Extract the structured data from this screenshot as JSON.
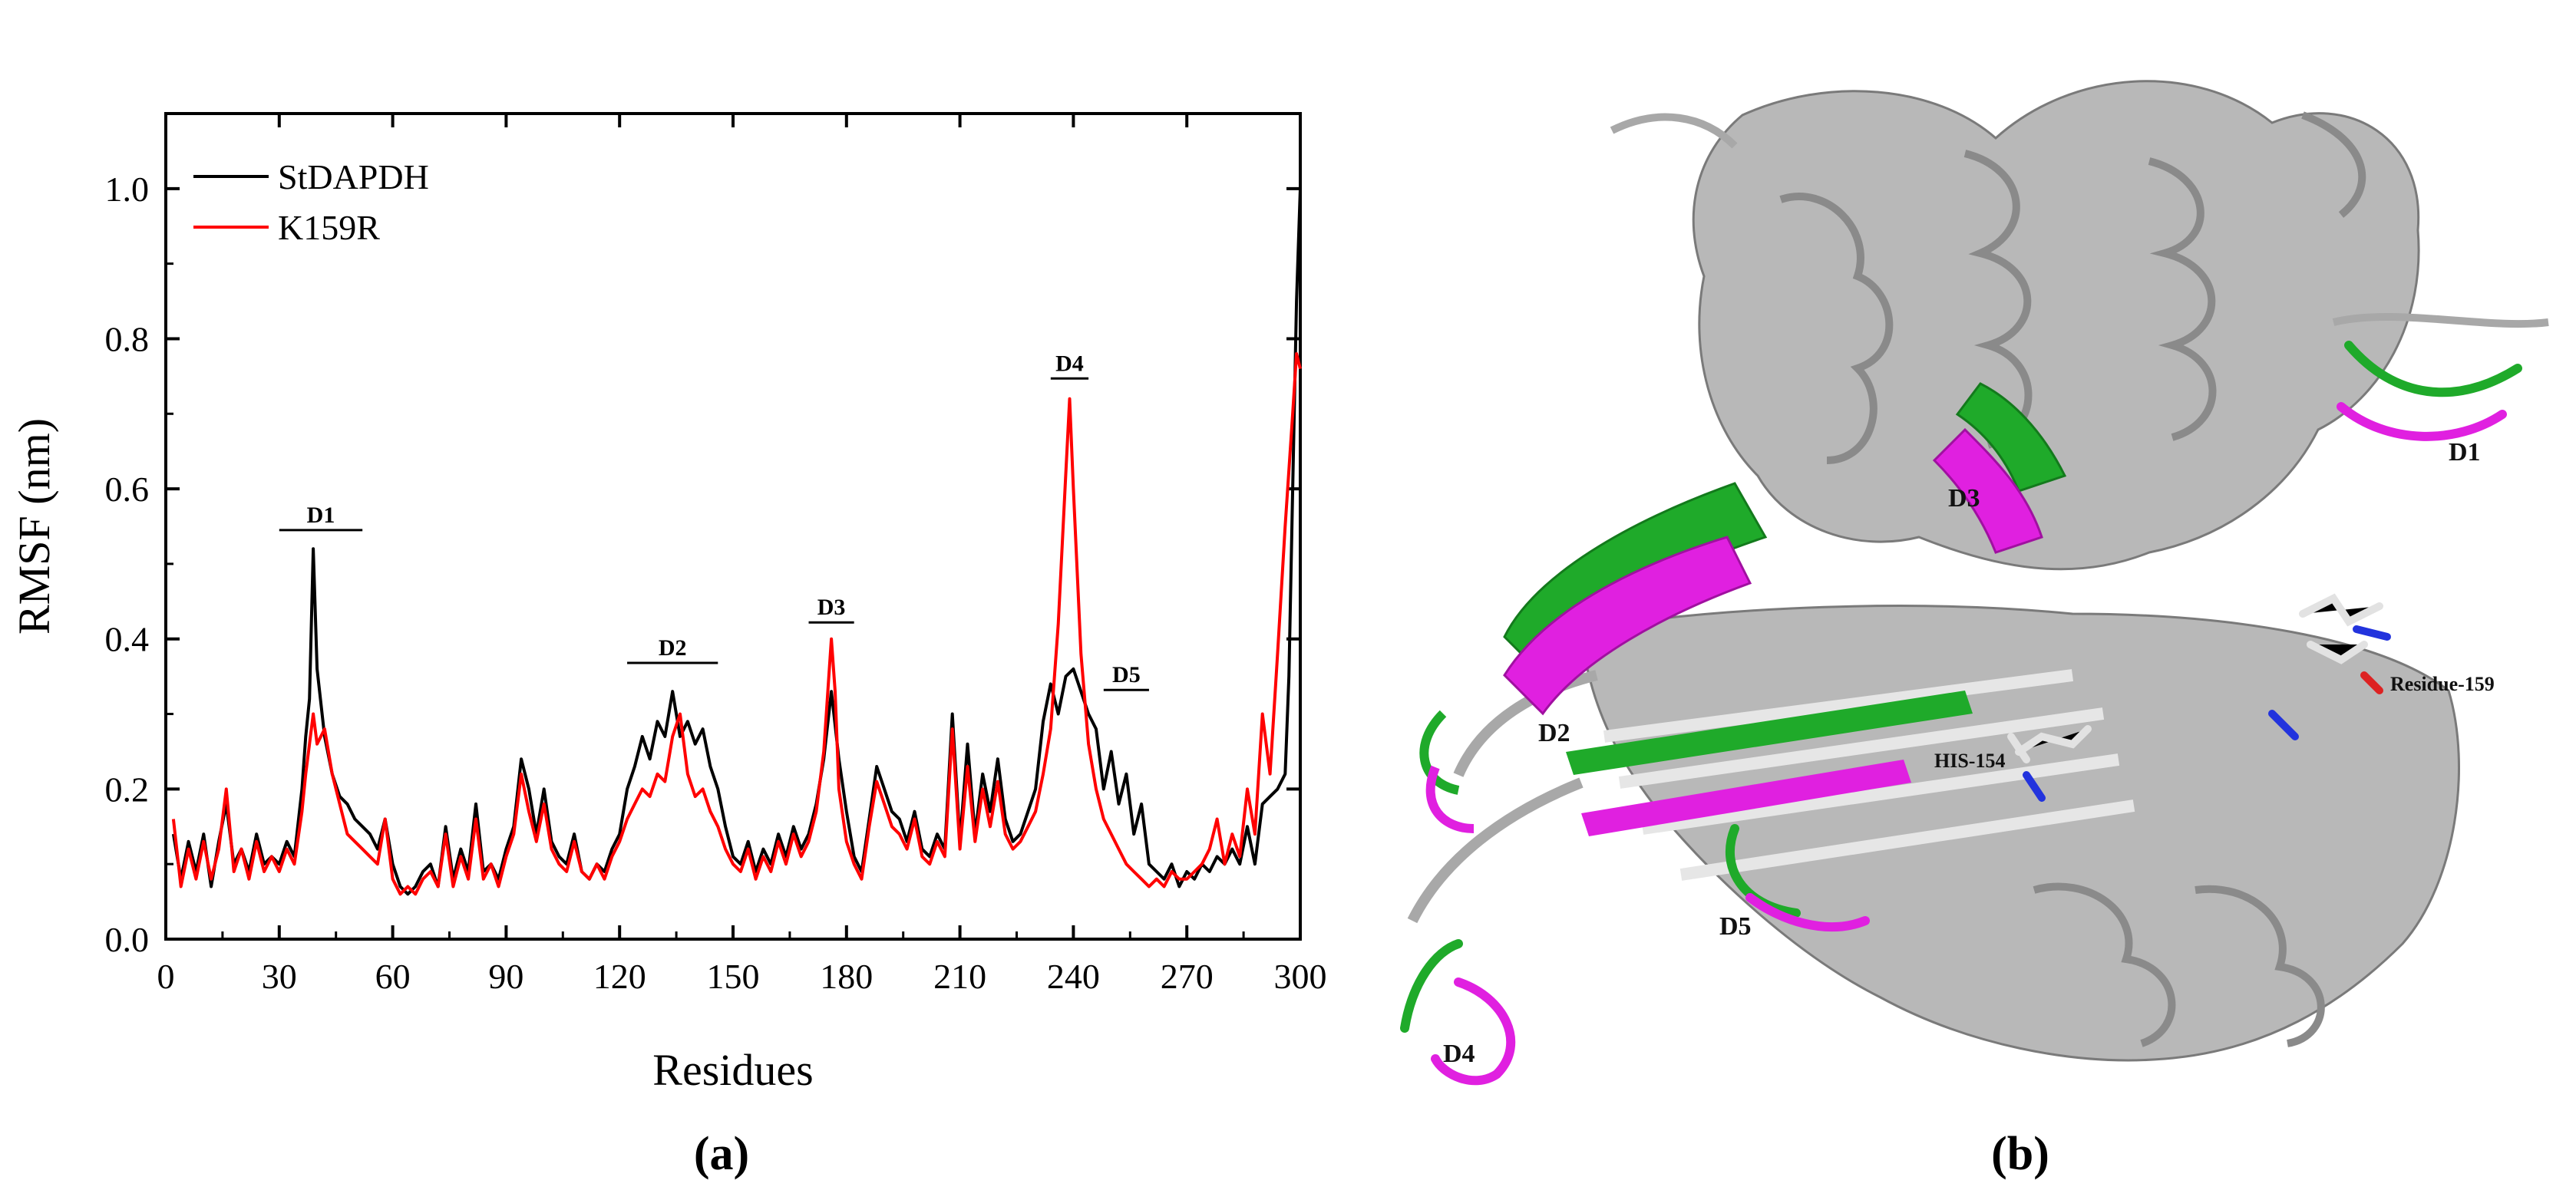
{
  "chart_data": {
    "type": "line",
    "xlabel": "Residues",
    "ylabel": "RMSF (nm)",
    "xlim": [
      0,
      300
    ],
    "ylim": [
      0.0,
      1.1
    ],
    "x_ticks": [
      "0",
      "30",
      "60",
      "90",
      "120",
      "150",
      "180",
      "210",
      "240",
      "270",
      "300"
    ],
    "y_ticks": [
      "0.0",
      "0.2",
      "0.4",
      "0.6",
      "0.8",
      "1.0"
    ],
    "legend_position": "top-left",
    "series": [
      {
        "name": "StDAPDH",
        "color": "#000000",
        "points": [
          [
            2,
            0.14
          ],
          [
            4,
            0.08
          ],
          [
            6,
            0.13
          ],
          [
            8,
            0.09
          ],
          [
            10,
            0.14
          ],
          [
            12,
            0.07
          ],
          [
            14,
            0.13
          ],
          [
            16,
            0.18
          ],
          [
            18,
            0.1
          ],
          [
            20,
            0.12
          ],
          [
            22,
            0.09
          ],
          [
            24,
            0.14
          ],
          [
            26,
            0.1
          ],
          [
            28,
            0.11
          ],
          [
            30,
            0.1
          ],
          [
            32,
            0.13
          ],
          [
            34,
            0.11
          ],
          [
            36,
            0.2
          ],
          [
            37,
            0.27
          ],
          [
            38,
            0.32
          ],
          [
            39,
            0.52
          ],
          [
            40,
            0.36
          ],
          [
            42,
            0.27
          ],
          [
            44,
            0.22
          ],
          [
            46,
            0.19
          ],
          [
            48,
            0.18
          ],
          [
            50,
            0.16
          ],
          [
            52,
            0.15
          ],
          [
            54,
            0.14
          ],
          [
            56,
            0.12
          ],
          [
            58,
            0.16
          ],
          [
            60,
            0.1
          ],
          [
            62,
            0.07
          ],
          [
            64,
            0.06
          ],
          [
            66,
            0.07
          ],
          [
            68,
            0.09
          ],
          [
            70,
            0.1
          ],
          [
            72,
            0.07
          ],
          [
            74,
            0.15
          ],
          [
            76,
            0.08
          ],
          [
            78,
            0.12
          ],
          [
            80,
            0.09
          ],
          [
            82,
            0.18
          ],
          [
            84,
            0.09
          ],
          [
            86,
            0.1
          ],
          [
            88,
            0.08
          ],
          [
            90,
            0.12
          ],
          [
            92,
            0.15
          ],
          [
            94,
            0.24
          ],
          [
            96,
            0.2
          ],
          [
            98,
            0.14
          ],
          [
            100,
            0.2
          ],
          [
            102,
            0.13
          ],
          [
            104,
            0.11
          ],
          [
            106,
            0.1
          ],
          [
            108,
            0.14
          ],
          [
            110,
            0.09
          ],
          [
            112,
            0.08
          ],
          [
            114,
            0.1
          ],
          [
            116,
            0.09
          ],
          [
            118,
            0.12
          ],
          [
            120,
            0.14
          ],
          [
            122,
            0.2
          ],
          [
            124,
            0.23
          ],
          [
            126,
            0.27
          ],
          [
            128,
            0.24
          ],
          [
            130,
            0.29
          ],
          [
            132,
            0.27
          ],
          [
            134,
            0.33
          ],
          [
            136,
            0.27
          ],
          [
            138,
            0.29
          ],
          [
            140,
            0.26
          ],
          [
            142,
            0.28
          ],
          [
            144,
            0.23
          ],
          [
            146,
            0.2
          ],
          [
            148,
            0.15
          ],
          [
            150,
            0.11
          ],
          [
            152,
            0.1
          ],
          [
            154,
            0.13
          ],
          [
            156,
            0.09
          ],
          [
            158,
            0.12
          ],
          [
            160,
            0.1
          ],
          [
            162,
            0.14
          ],
          [
            164,
            0.11
          ],
          [
            166,
            0.15
          ],
          [
            168,
            0.12
          ],
          [
            170,
            0.14
          ],
          [
            172,
            0.18
          ],
          [
            174,
            0.24
          ],
          [
            176,
            0.33
          ],
          [
            178,
            0.24
          ],
          [
            180,
            0.17
          ],
          [
            182,
            0.11
          ],
          [
            184,
            0.09
          ],
          [
            186,
            0.16
          ],
          [
            188,
            0.23
          ],
          [
            190,
            0.2
          ],
          [
            192,
            0.17
          ],
          [
            194,
            0.16
          ],
          [
            196,
            0.13
          ],
          [
            198,
            0.17
          ],
          [
            200,
            0.12
          ],
          [
            202,
            0.11
          ],
          [
            204,
            0.14
          ],
          [
            206,
            0.12
          ],
          [
            208,
            0.3
          ],
          [
            210,
            0.13
          ],
          [
            212,
            0.26
          ],
          [
            214,
            0.14
          ],
          [
            216,
            0.22
          ],
          [
            218,
            0.17
          ],
          [
            220,
            0.24
          ],
          [
            222,
            0.16
          ],
          [
            224,
            0.13
          ],
          [
            226,
            0.14
          ],
          [
            228,
            0.17
          ],
          [
            230,
            0.2
          ],
          [
            232,
            0.29
          ],
          [
            234,
            0.34
          ],
          [
            236,
            0.3
          ],
          [
            238,
            0.35
          ],
          [
            240,
            0.36
          ],
          [
            242,
            0.33
          ],
          [
            244,
            0.3
          ],
          [
            246,
            0.28
          ],
          [
            248,
            0.2
          ],
          [
            250,
            0.25
          ],
          [
            252,
            0.18
          ],
          [
            254,
            0.22
          ],
          [
            256,
            0.14
          ],
          [
            258,
            0.18
          ],
          [
            260,
            0.1
          ],
          [
            262,
            0.09
          ],
          [
            264,
            0.08
          ],
          [
            266,
            0.1
          ],
          [
            268,
            0.07
          ],
          [
            270,
            0.09
          ],
          [
            272,
            0.08
          ],
          [
            274,
            0.1
          ],
          [
            276,
            0.09
          ],
          [
            278,
            0.11
          ],
          [
            280,
            0.1
          ],
          [
            282,
            0.12
          ],
          [
            284,
            0.1
          ],
          [
            286,
            0.15
          ],
          [
            288,
            0.1
          ],
          [
            290,
            0.18
          ],
          [
            292,
            0.19
          ],
          [
            294,
            0.2
          ],
          [
            296,
            0.22
          ],
          [
            297,
            0.35
          ],
          [
            298,
            0.6
          ],
          [
            299,
            0.85
          ],
          [
            300,
            1.0
          ]
        ]
      },
      {
        "name": "K159R",
        "color": "#ff0000",
        "points": [
          [
            2,
            0.16
          ],
          [
            4,
            0.07
          ],
          [
            6,
            0.12
          ],
          [
            8,
            0.08
          ],
          [
            10,
            0.13
          ],
          [
            12,
            0.08
          ],
          [
            14,
            0.12
          ],
          [
            16,
            0.2
          ],
          [
            18,
            0.09
          ],
          [
            20,
            0.12
          ],
          [
            22,
            0.08
          ],
          [
            24,
            0.13
          ],
          [
            26,
            0.09
          ],
          [
            28,
            0.11
          ],
          [
            30,
            0.09
          ],
          [
            32,
            0.12
          ],
          [
            34,
            0.1
          ],
          [
            36,
            0.17
          ],
          [
            37,
            0.22
          ],
          [
            38,
            0.26
          ],
          [
            39,
            0.3
          ],
          [
            40,
            0.26
          ],
          [
            42,
            0.28
          ],
          [
            44,
            0.22
          ],
          [
            46,
            0.18
          ],
          [
            48,
            0.14
          ],
          [
            50,
            0.13
          ],
          [
            52,
            0.12
          ],
          [
            54,
            0.11
          ],
          [
            56,
            0.1
          ],
          [
            58,
            0.16
          ],
          [
            60,
            0.08
          ],
          [
            62,
            0.06
          ],
          [
            64,
            0.07
          ],
          [
            66,
            0.06
          ],
          [
            68,
            0.08
          ],
          [
            70,
            0.09
          ],
          [
            72,
            0.07
          ],
          [
            74,
            0.14
          ],
          [
            76,
            0.07
          ],
          [
            78,
            0.11
          ],
          [
            80,
            0.08
          ],
          [
            82,
            0.16
          ],
          [
            84,
            0.08
          ],
          [
            86,
            0.1
          ],
          [
            88,
            0.07
          ],
          [
            90,
            0.11
          ],
          [
            92,
            0.14
          ],
          [
            94,
            0.22
          ],
          [
            96,
            0.17
          ],
          [
            98,
            0.13
          ],
          [
            100,
            0.18
          ],
          [
            102,
            0.12
          ],
          [
            104,
            0.1
          ],
          [
            106,
            0.09
          ],
          [
            108,
            0.13
          ],
          [
            110,
            0.09
          ],
          [
            112,
            0.08
          ],
          [
            114,
            0.1
          ],
          [
            116,
            0.08
          ],
          [
            118,
            0.11
          ],
          [
            120,
            0.13
          ],
          [
            122,
            0.16
          ],
          [
            124,
            0.18
          ],
          [
            126,
            0.2
          ],
          [
            128,
            0.19
          ],
          [
            130,
            0.22
          ],
          [
            132,
            0.21
          ],
          [
            134,
            0.27
          ],
          [
            136,
            0.3
          ],
          [
            138,
            0.22
          ],
          [
            140,
            0.19
          ],
          [
            142,
            0.2
          ],
          [
            144,
            0.17
          ],
          [
            146,
            0.15
          ],
          [
            148,
            0.12
          ],
          [
            150,
            0.1
          ],
          [
            152,
            0.09
          ],
          [
            154,
            0.12
          ],
          [
            156,
            0.08
          ],
          [
            158,
            0.11
          ],
          [
            160,
            0.09
          ],
          [
            162,
            0.13
          ],
          [
            164,
            0.1
          ],
          [
            166,
            0.14
          ],
          [
            168,
            0.11
          ],
          [
            170,
            0.13
          ],
          [
            172,
            0.17
          ],
          [
            174,
            0.25
          ],
          [
            176,
            0.4
          ],
          [
            177,
            0.33
          ],
          [
            178,
            0.2
          ],
          [
            180,
            0.13
          ],
          [
            182,
            0.1
          ],
          [
            184,
            0.08
          ],
          [
            186,
            0.15
          ],
          [
            188,
            0.21
          ],
          [
            190,
            0.18
          ],
          [
            192,
            0.15
          ],
          [
            194,
            0.14
          ],
          [
            196,
            0.12
          ],
          [
            198,
            0.16
          ],
          [
            200,
            0.11
          ],
          [
            202,
            0.1
          ],
          [
            204,
            0.13
          ],
          [
            206,
            0.11
          ],
          [
            208,
            0.28
          ],
          [
            210,
            0.12
          ],
          [
            212,
            0.23
          ],
          [
            214,
            0.13
          ],
          [
            216,
            0.2
          ],
          [
            218,
            0.15
          ],
          [
            220,
            0.21
          ],
          [
            222,
            0.14
          ],
          [
            224,
            0.12
          ],
          [
            226,
            0.13
          ],
          [
            228,
            0.15
          ],
          [
            230,
            0.17
          ],
          [
            232,
            0.22
          ],
          [
            234,
            0.28
          ],
          [
            236,
            0.42
          ],
          [
            238,
            0.62
          ],
          [
            239,
            0.72
          ],
          [
            240,
            0.6
          ],
          [
            242,
            0.38
          ],
          [
            244,
            0.26
          ],
          [
            246,
            0.2
          ],
          [
            248,
            0.16
          ],
          [
            250,
            0.14
          ],
          [
            252,
            0.12
          ],
          [
            254,
            0.1
          ],
          [
            256,
            0.09
          ],
          [
            258,
            0.08
          ],
          [
            260,
            0.07
          ],
          [
            262,
            0.08
          ],
          [
            264,
            0.07
          ],
          [
            266,
            0.09
          ],
          [
            268,
            0.08
          ],
          [
            270,
            0.08
          ],
          [
            272,
            0.09
          ],
          [
            274,
            0.1
          ],
          [
            276,
            0.12
          ],
          [
            278,
            0.16
          ],
          [
            280,
            0.1
          ],
          [
            282,
            0.14
          ],
          [
            284,
            0.11
          ],
          [
            286,
            0.2
          ],
          [
            288,
            0.14
          ],
          [
            290,
            0.3
          ],
          [
            292,
            0.22
          ],
          [
            294,
            0.38
          ],
          [
            296,
            0.55
          ],
          [
            298,
            0.7
          ],
          [
            299,
            0.78
          ],
          [
            300,
            0.76
          ]
        ]
      }
    ],
    "regions": [
      {
        "label": "D1",
        "x_start": 30,
        "x_end": 52,
        "y": 0.545
      },
      {
        "label": "D2",
        "x_start": 122,
        "x_end": 146,
        "y": 0.368
      },
      {
        "label": "D3",
        "x_start": 170,
        "x_end": 182,
        "y": 0.422
      },
      {
        "label": "D4",
        "x_start": 234,
        "x_end": 244,
        "y": 0.747
      },
      {
        "label": "D5",
        "x_start": 248,
        "x_end": 260,
        "y": 0.332
      }
    ]
  },
  "panel_labels": {
    "a": "(a)",
    "b": "(b)"
  },
  "structure_labels": {
    "d1": "D1",
    "d2": "D2",
    "d3": "D3",
    "d4": "D4",
    "d5": "D5",
    "his": "HIS-154",
    "residue": "Residue-159"
  },
  "colors": {
    "stdapdh": "#000000",
    "k159r": "#ff0000",
    "protein_gray": "#b8b8b8",
    "region_green": "#1faa2a",
    "region_magenta": "#e020e0"
  }
}
